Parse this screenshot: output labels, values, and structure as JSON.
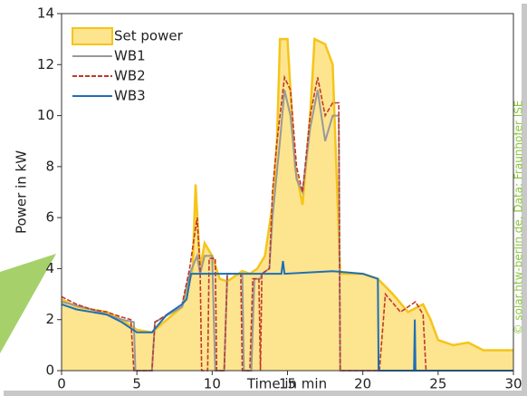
{
  "chart_data": {
    "type": "line",
    "xlabel": "Time in min",
    "ylabel": "Power in kW",
    "credit": "© solar.htw-berlin.de, Data: Fraunhofer ISE",
    "xlim": [
      0,
      30
    ],
    "xticks": [
      0,
      5,
      10,
      15,
      20,
      25,
      30
    ],
    "ylim": [
      0,
      14
    ],
    "yticks": [
      0,
      2,
      4,
      6,
      8,
      10,
      12,
      14
    ],
    "legend": "upper left",
    "series": [
      {
        "name": "Set power",
        "kind": "area",
        "color": "#f5c518",
        "fill": "#fde48f",
        "x": [
          0,
          1,
          2,
          3,
          4,
          5,
          6,
          7,
          8,
          8.5,
          8.7,
          8.9,
          9.2,
          9.5,
          10,
          10.5,
          11,
          12,
          12.5,
          13,
          13.5,
          14,
          14.3,
          14.5,
          15,
          15.5,
          16,
          16.5,
          16.8,
          17.5,
          18,
          18.5,
          20,
          21,
          22,
          23,
          24,
          24.5,
          25,
          26,
          27,
          28,
          30
        ],
        "values": [
          2.8,
          2.5,
          2.4,
          2.3,
          2.0,
          1.6,
          1.5,
          2.0,
          2.5,
          3.5,
          4.0,
          7.3,
          4.0,
          5.0,
          4.5,
          3.6,
          3.5,
          3.9,
          3.8,
          4.0,
          4.5,
          6.5,
          9.0,
          13.0,
          13.0,
          8.0,
          6.5,
          10.0,
          13.0,
          12.8,
          12.0,
          3.8,
          3.8,
          3.6,
          3.0,
          2.3,
          2.6,
          2.0,
          1.2,
          1.0,
          1.1,
          0.8,
          0.8
        ]
      },
      {
        "name": "WB1",
        "kind": "line",
        "color": "#999999",
        "x": [
          0,
          2,
          4,
          4.8,
          4.9,
          6.0,
          6.2,
          8,
          8.5,
          9.0,
          9.2,
          9.5,
          10.0,
          10.2,
          10.8,
          11.0,
          12.0,
          12.1,
          12.6,
          12.8,
          13.2,
          13.3,
          13.8,
          14.0,
          14.5,
          14.8,
          15.2,
          15.6,
          16.0,
          16.5,
          17.0,
          17.5,
          18.0,
          18.4,
          18.5,
          30
        ],
        "values": [
          2.7,
          2.4,
          2.0,
          1.9,
          0,
          0,
          1.9,
          2.5,
          3.8,
          4.5,
          3.8,
          4.5,
          4.5,
          0,
          0,
          3.8,
          3.8,
          0,
          0,
          3.6,
          3.6,
          3.8,
          4.0,
          6.0,
          9.0,
          11.0,
          10.0,
          7.5,
          7.0,
          9.5,
          11.0,
          9.0,
          10.0,
          10.0,
          0,
          0
        ]
      },
      {
        "name": "WB2",
        "kind": "line",
        "dash": true,
        "color": "#c0392b",
        "x": [
          0,
          1,
          2,
          3,
          4,
          4.6,
          4.8,
          6.0,
          6.2,
          7,
          8,
          8.5,
          9.0,
          9.2,
          9.3,
          9.7,
          9.8,
          10.2,
          10.3,
          10.8,
          11.0,
          11.9,
          12.0,
          12.5,
          12.7,
          13.1,
          13.2,
          13.3,
          13.8,
          14.0,
          14.3,
          14.8,
          15.2,
          15.6,
          16.0,
          16.5,
          17.0,
          17.5,
          18.0,
          18.4,
          18.5,
          21.1,
          21.5,
          22.5,
          23.5,
          24.0,
          24.2,
          30
        ],
        "values": [
          2.9,
          2.6,
          2.4,
          2.3,
          2.1,
          2.0,
          0,
          0,
          1.9,
          2.2,
          2.6,
          4.0,
          6.0,
          4.0,
          0,
          0,
          4.4,
          4.4,
          0,
          0,
          3.8,
          3.8,
          0,
          0,
          3.6,
          3.6,
          0,
          3.8,
          4.0,
          7.0,
          9.0,
          11.5,
          11.0,
          8.0,
          7.0,
          10.0,
          11.5,
          10.0,
          10.5,
          10.5,
          0,
          0,
          3.0,
          2.3,
          2.7,
          2.2,
          0,
          0
        ]
      },
      {
        "name": "WB3",
        "kind": "line",
        "color": "#1f6fb4",
        "x": [
          0,
          1,
          2,
          3,
          4,
          5,
          6,
          7,
          8,
          8.3,
          8.6,
          14.6,
          14.7,
          14.8,
          18,
          20,
          21,
          21.05,
          23.4,
          23.45,
          23.5,
          30
        ],
        "values": [
          2.6,
          2.4,
          2.3,
          2.2,
          1.9,
          1.5,
          1.5,
          2.2,
          2.6,
          2.8,
          3.8,
          3.8,
          4.3,
          3.8,
          3.9,
          3.8,
          3.6,
          0,
          0,
          2.0,
          0,
          0
        ]
      }
    ]
  }
}
